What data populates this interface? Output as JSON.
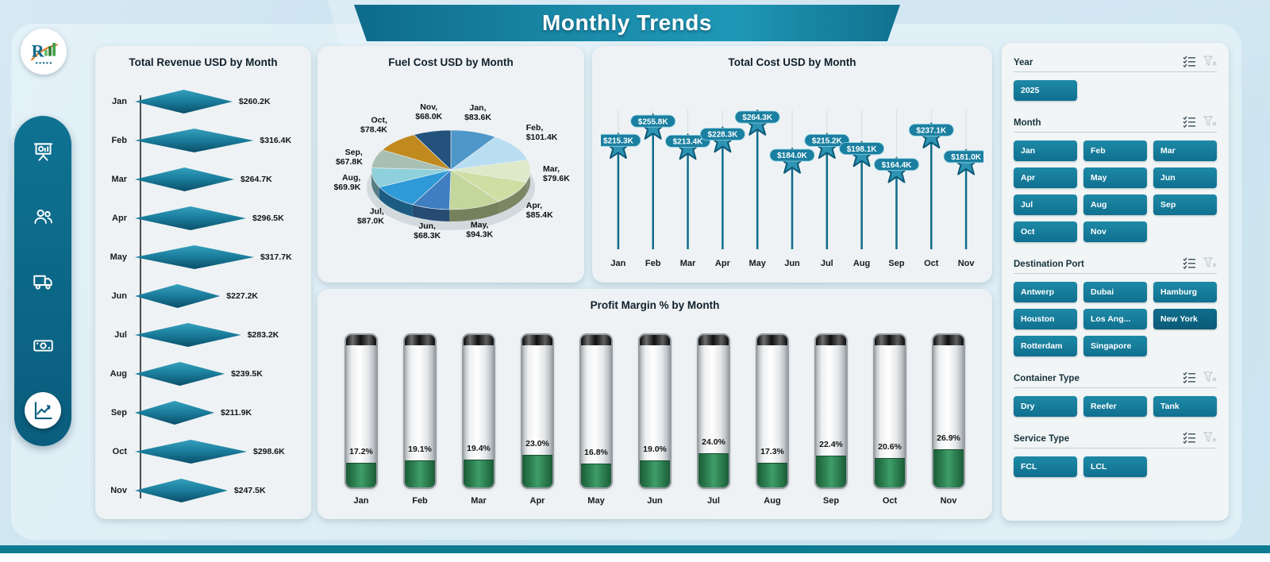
{
  "header": {
    "title": "Monthly Trends"
  },
  "sidebar": {
    "items": [
      {
        "icon": "presentation-chart-icon",
        "active": false
      },
      {
        "icon": "people-icon",
        "active": false
      },
      {
        "icon": "truck-icon",
        "active": false
      },
      {
        "icon": "money-icon",
        "active": false
      },
      {
        "icon": "line-chart-icon",
        "active": true
      }
    ]
  },
  "theme": {
    "accent": "#17809F",
    "sidebar": "#0C6D8E",
    "banner": "#1B8CAB",
    "card_bg": "#EEF2F4",
    "page_bg": "#CFE4EF",
    "fill_green": "#2F8455",
    "stem_teal": "#0E6C8B",
    "text_dark": "#111827"
  },
  "chart_data": [
    {
      "type": "bar",
      "variant": "diamond-funnel",
      "title": "Total Revenue USD by Month",
      "categories": [
        "Jan",
        "Feb",
        "Mar",
        "Apr",
        "May",
        "Jun",
        "Jul",
        "Aug",
        "Sep",
        "Oct",
        "Nov"
      ],
      "values": [
        260.2,
        316.4,
        264.7,
        296.5,
        317.7,
        227.2,
        283.2,
        239.5,
        211.9,
        298.6,
        247.5
      ],
      "labels": [
        "$260.2K",
        "$316.4K",
        "$264.7K",
        "$296.5K",
        "$317.7K",
        "$227.2K",
        "$283.2K",
        "$239.5K",
        "$211.9K",
        "$298.6K",
        "$247.5K"
      ],
      "unit": "USD thousands"
    },
    {
      "type": "pie",
      "variant": "pie-3d",
      "title": "Fuel Cost USD by Month",
      "categories": [
        "Jan",
        "Feb",
        "Mar",
        "Apr",
        "May",
        "Jun",
        "Jul",
        "Aug",
        "Sep",
        "Oct",
        "Nov"
      ],
      "values": [
        83.6,
        101.4,
        79.6,
        85.4,
        94.3,
        68.3,
        87.0,
        69.9,
        67.8,
        78.4,
        68.0
      ],
      "labels": [
        "Jan, $83.6K",
        "Feb, $101.4K",
        "Mar, $79.6K",
        "Apr, $85.4K",
        "May, $94.3K",
        "Jun, $68.3K",
        "Jul, $87.0K",
        "Aug, $69.9K",
        "Sep, $67.8K",
        "Oct, $78.4K",
        "Nov, $68.0K"
      ],
      "colors": [
        "#4E97C8",
        "#B9DDF1",
        "#DDE9C9",
        "#CFDFA4",
        "#C3D69B",
        "#3F7FC1",
        "#2E9AD8",
        "#8ED0DB",
        "#A8BFB4",
        "#C08A1E",
        "#23527C"
      ]
    },
    {
      "type": "line",
      "variant": "star-lollipop",
      "title": "Total Cost USD by Month",
      "categories": [
        "Jan",
        "Feb",
        "Mar",
        "Apr",
        "May",
        "Jun",
        "Jul",
        "Aug",
        "Sep",
        "Oct",
        "Nov"
      ],
      "values": [
        215.3,
        255.8,
        213.4,
        228.3,
        264.3,
        184.0,
        215.2,
        198.1,
        164.4,
        237.1,
        181.0
      ],
      "labels": [
        "$215.3K",
        "$255.8K",
        "$213.4K",
        "$228.3K",
        "$264.3K",
        "$184.0K",
        "$215.2K",
        "$198.1K",
        "$164.4K",
        "$237.1K",
        "$181.0K"
      ]
    },
    {
      "type": "bar",
      "variant": "thermometer",
      "title": "Profit Margin % by Month",
      "categories": [
        "Jan",
        "Feb",
        "Mar",
        "Apr",
        "May",
        "Jun",
        "Jul",
        "Aug",
        "Sep",
        "Oct",
        "Nov"
      ],
      "values": [
        17.2,
        19.1,
        19.4,
        23.0,
        16.8,
        19.0,
        24.0,
        17.3,
        22.4,
        20.6,
        26.9
      ],
      "labels": [
        "17.2%",
        "19.1%",
        "19.4%",
        "23.0%",
        "16.8%",
        "19.0%",
        "24.0%",
        "17.3%",
        "22.4%",
        "20.6%",
        "26.9%"
      ],
      "ylim": [
        0,
        100
      ]
    }
  ],
  "slicers": [
    {
      "label": "Year",
      "options": [
        "2025"
      ]
    },
    {
      "label": "Month",
      "options": [
        "Jan",
        "Feb",
        "Mar",
        "Apr",
        "May",
        "Jun",
        "Jul",
        "Aug",
        "Sep",
        "Oct",
        "Nov"
      ]
    },
    {
      "label": "Destination Port",
      "options": [
        "Antwerp",
        "Dubai",
        "Hamburg",
        "Houston",
        "Los Ang...",
        "New York",
        "Rotterdam",
        "Singapore"
      ],
      "emphasis": [
        "New York"
      ]
    },
    {
      "label": "Container Type",
      "options": [
        "Dry",
        "Reefer",
        "Tank"
      ]
    },
    {
      "label": "Service Type",
      "options": [
        "FCL",
        "LCL"
      ]
    }
  ]
}
